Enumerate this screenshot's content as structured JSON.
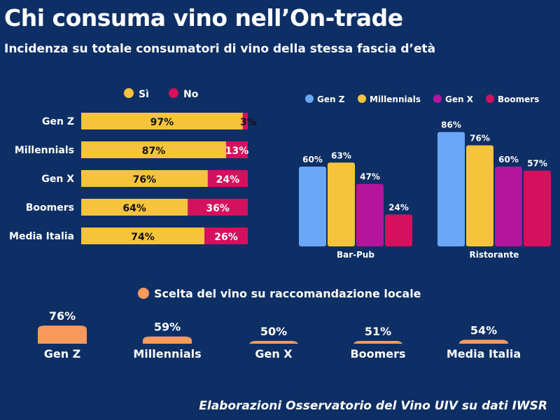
{
  "title": "Chi consuma vino nell’On-trade",
  "subtitle": "Incidenza su totale consumatori di vino della stessa fascia d’età",
  "footer": "Elaborazioni Osservatorio del Vino UIV su dati IWSR",
  "colors": {
    "background": "#0d2f66",
    "yes": "#f5c43c",
    "no": "#d5115e",
    "gen_z": "#6aa8f7",
    "millennials": "#f5c43c",
    "gen_x": "#b5159e",
    "boomers": "#d5115e",
    "local": "#f79a5c"
  },
  "chart_data": [
    {
      "type": "bar",
      "orientation": "horizontal",
      "stacked": true,
      "categories": [
        "Gen Z",
        "Millennials",
        "Gen X",
        "Boomers",
        "Media Italia"
      ],
      "series": [
        {
          "name": "Sì",
          "values": [
            97,
            87,
            76,
            64,
            74
          ],
          "labels": [
            "97%",
            "87%",
            "76%",
            "64%",
            "74%"
          ]
        },
        {
          "name": "No",
          "values": [
            3,
            13,
            24,
            36,
            26
          ],
          "labels": [
            "3%",
            "13%",
            "24%",
            "36%",
            "26%"
          ]
        }
      ],
      "xlim": [
        0,
        100
      ],
      "legend": "top"
    },
    {
      "type": "bar",
      "orientation": "vertical",
      "categories": [
        "Bar-Pub",
        "Ristorante"
      ],
      "series": [
        {
          "name": "Gen Z",
          "values": [
            60,
            86
          ],
          "labels": [
            "60%",
            "86%"
          ]
        },
        {
          "name": "Millennials",
          "values": [
            63,
            76
          ],
          "labels": [
            "63%",
            "76%"
          ]
        },
        {
          "name": "Gen X",
          "values": [
            47,
            60
          ],
          "labels": [
            "47%",
            "60%"
          ]
        },
        {
          "name": "Boomers",
          "values": [
            24,
            57
          ],
          "labels": [
            "24%",
            "57%"
          ]
        }
      ],
      "ylim": [
        0,
        100
      ],
      "legend": "top"
    },
    {
      "type": "bar",
      "orientation": "vertical",
      "categories": [
        "Gen Z",
        "Millennials",
        "Gen X",
        "Boomers",
        "Media Italia"
      ],
      "series": [
        {
          "name": "Scelta del vino su raccomandazione locale",
          "values": [
            76,
            59,
            50,
            51,
            54
          ],
          "labels": [
            "76%",
            "59%",
            "50%",
            "51%",
            "54%"
          ]
        }
      ],
      "legend": "top"
    }
  ]
}
